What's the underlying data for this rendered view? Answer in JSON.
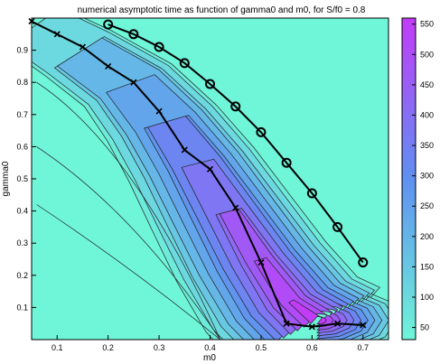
{
  "chart_data": {
    "type": "contour",
    "title": "numerical asymptotic time as function of gamma0 and m0, for S/f0 = 0.8",
    "xlabel": "m0",
    "ylabel": "gamma0",
    "xlim": [
      0.05,
      0.75
    ],
    "ylim": [
      0.0,
      1.0
    ],
    "x_ticks": [
      "0.1",
      "0.2",
      "0.3",
      "0.4",
      "0.5",
      "0.6",
      "0.7"
    ],
    "y_ticks": [
      "0.1",
      "0.2",
      "0.3",
      "0.4",
      "0.5",
      "0.6",
      "0.7",
      "0.8",
      "0.9"
    ],
    "colorbar": {
      "range": [
        30,
        560
      ],
      "ticks": [
        "50",
        "100",
        "150",
        "200",
        "250",
        "300",
        "350",
        "400",
        "450",
        "500",
        "550"
      ],
      "color_low": "#6ff5d8",
      "color_high": "#c23cf8"
    },
    "contour_field": {
      "peak": {
        "m0": 0.61,
        "gamma0": 0.06,
        "value": 545
      },
      "ridge": [
        [
          0.06,
          0.98
        ],
        [
          0.15,
          0.9
        ],
        [
          0.25,
          0.8
        ],
        [
          0.32,
          0.68
        ],
        [
          0.38,
          0.55
        ],
        [
          0.44,
          0.4
        ],
        [
          0.5,
          0.25
        ],
        [
          0.56,
          0.12
        ],
        [
          0.61,
          0.06
        ]
      ]
    },
    "series": [
      {
        "marker": "x",
        "x": [
          0.05,
          0.1,
          0.15,
          0.2,
          0.25,
          0.3,
          0.35,
          0.4,
          0.45,
          0.5,
          0.55,
          0.6,
          0.65,
          0.7
        ],
        "y": [
          0.99,
          0.95,
          0.91,
          0.85,
          0.8,
          0.71,
          0.59,
          0.53,
          0.41,
          0.24,
          0.05,
          0.04,
          0.05,
          0.045
        ]
      },
      {
        "marker": "o",
        "x": [
          0.2,
          0.25,
          0.3,
          0.35,
          0.4,
          0.45,
          0.5,
          0.55,
          0.6,
          0.65,
          0.7
        ],
        "y": [
          0.98,
          0.95,
          0.91,
          0.86,
          0.795,
          0.725,
          0.645,
          0.55,
          0.455,
          0.35,
          0.24
        ]
      }
    ]
  }
}
